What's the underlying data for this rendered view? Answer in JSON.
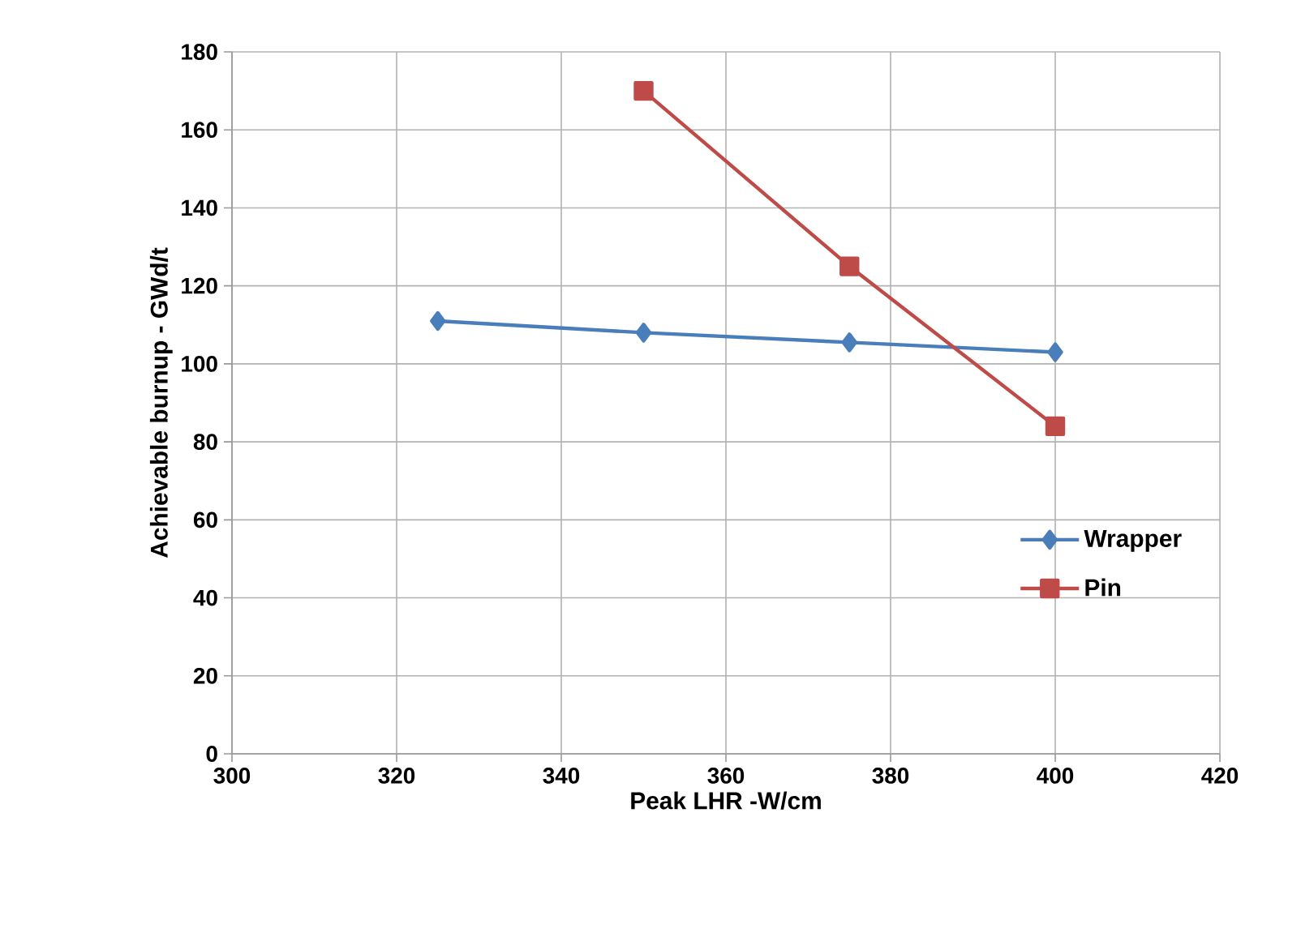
{
  "chart_data": {
    "type": "line",
    "xlabel": "Peak LHR -W/cm",
    "ylabel": "Achievable burnup - GWd/t",
    "xlim": [
      300,
      420
    ],
    "xticks": [
      300,
      320,
      340,
      360,
      380,
      400,
      420
    ],
    "ylim": [
      0,
      180
    ],
    "yticks": [
      0,
      20,
      40,
      60,
      80,
      100,
      120,
      140,
      160,
      180
    ],
    "grid": true,
    "legend": "right",
    "series": [
      {
        "name": "Wrapper",
        "color": "#4a7ebb",
        "marker": "diamond",
        "x": [
          325,
          350,
          375,
          400
        ],
        "values": [
          111,
          108,
          105.5,
          103
        ]
      },
      {
        "name": "Pin",
        "color": "#be4b48",
        "marker": "square",
        "x": [
          350,
          375,
          400
        ],
        "values": [
          170,
          125,
          84
        ]
      }
    ]
  }
}
